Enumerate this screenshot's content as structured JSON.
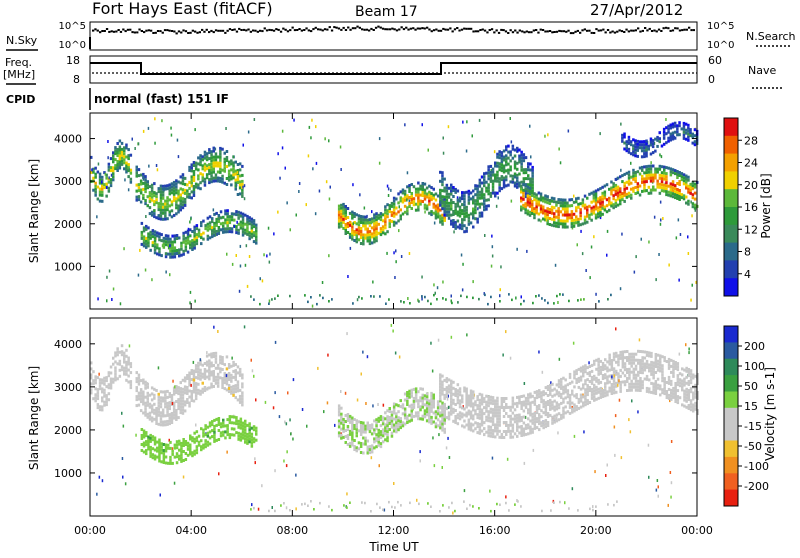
{
  "header": {
    "station": "Fort Hays East (fitACF)",
    "beam": "Beam 17",
    "date": "27/Apr/2012"
  },
  "top_panels": {
    "left_labels": {
      "nsky": "N.Sky",
      "freq": "Freq.",
      "mhz": "[MHz]",
      "cpid": "CPID"
    },
    "right_labels": {
      "nsearch": "N.Search",
      "nave": "Nave"
    },
    "noise_ticks_left": [
      "10^5",
      "10^0"
    ],
    "noise_ticks_right": [
      "10^5",
      "10^0"
    ],
    "freq_ticks": [
      "18",
      "8"
    ],
    "nave_ticks": [
      "60",
      "0"
    ],
    "cpid_text": "normal (fast) 151 IF"
  },
  "axes": {
    "ylabel": "Slant Range [km]",
    "xlabel": "Time UT",
    "ylim": [
      0,
      4600
    ],
    "xlim": [
      0,
      24
    ],
    "y_ticks": [
      "1000",
      "2000",
      "3000",
      "4000"
    ],
    "x_ticks": [
      "00:00",
      "04:00",
      "08:00",
      "12:00",
      "16:00",
      "20:00",
      "00:00"
    ]
  },
  "power_colorbar": {
    "label": "Power [dB]",
    "ticks": [
      "4",
      "8",
      "12",
      "16",
      "20",
      "24",
      "28"
    ],
    "colors": [
      "#1010e8",
      "#2340b0",
      "#2b6a8a",
      "#3a8a5a",
      "#2e9a3a",
      "#5cb83a",
      "#f0d000",
      "#f4a000",
      "#f06000",
      "#e01010"
    ]
  },
  "velocity_colorbar": {
    "label": "Velocity [m s-1]",
    "ticks": [
      "200",
      "100",
      "50",
      "15",
      "-15",
      "-50",
      "-100",
      "-200"
    ],
    "colors": [
      "#1a2ad0",
      "#2a5aa0",
      "#2e8a5a",
      "#3aa040",
      "#7ad040",
      "#c8c8c8",
      "#c8c8c8",
      "#f0c030",
      "#f09020",
      "#f06020",
      "#e82010"
    ]
  },
  "chart_data": [
    {
      "type": "heatmap",
      "title": "Power",
      "xlabel": "Time UT",
      "ylabel": "Slant Range [km]",
      "xlim": [
        0,
        24
      ],
      "ylim": [
        0,
        4600
      ],
      "units": "dB",
      "color_range": [
        0,
        30
      ],
      "grid": false,
      "echo_bands": [
        {
          "t_start": 0.0,
          "t_end": 1.6,
          "range_low": 2200,
          "range_high": 3800,
          "peak_db": 20
        },
        {
          "t_start": 1.8,
          "t_end": 6.0,
          "range_low": 1800,
          "range_high": 3600,
          "peak_db": 20
        },
        {
          "t_start": 2.0,
          "t_end": 6.6,
          "range_low": 1000,
          "range_high": 2200,
          "peak_db": 18
        },
        {
          "t_start": 9.8,
          "t_end": 14.0,
          "range_low": 1200,
          "range_high": 2800,
          "peak_db": 26
        },
        {
          "t_start": 13.8,
          "t_end": 17.5,
          "range_low": 1400,
          "range_high": 3600,
          "peak_db": 14
        },
        {
          "t_start": 17.0,
          "t_end": 24.0,
          "range_low": 1600,
          "range_high": 3200,
          "peak_db": 28
        },
        {
          "t_start": 21.0,
          "t_end": 24.0,
          "range_low": 3400,
          "range_high": 4300,
          "peak_db": 8
        }
      ]
    },
    {
      "type": "heatmap",
      "title": "Velocity",
      "xlabel": "Time UT",
      "ylabel": "Slant Range [km]",
      "xlim": [
        0,
        24
      ],
      "ylim": [
        0,
        4600
      ],
      "units": "m s-1",
      "color_range": [
        -200,
        200
      ],
      "grid": false,
      "echo_bands": [
        {
          "t_start": 0.0,
          "t_end": 1.6,
          "range_low": 2200,
          "range_high": 3800,
          "typical_velocity": -20
        },
        {
          "t_start": 1.8,
          "t_end": 6.0,
          "range_low": 1800,
          "range_high": 3600,
          "typical_velocity": -40
        },
        {
          "t_start": 2.0,
          "t_end": 6.6,
          "range_low": 1000,
          "range_high": 2200,
          "typical_velocity": 40
        },
        {
          "t_start": 9.8,
          "t_end": 14.0,
          "range_low": 1200,
          "range_high": 2800,
          "typical_velocity": 15
        },
        {
          "t_start": 13.8,
          "t_end": 24.0,
          "range_low": 1400,
          "range_high": 3600,
          "typical_velocity": 0
        }
      ]
    }
  ]
}
